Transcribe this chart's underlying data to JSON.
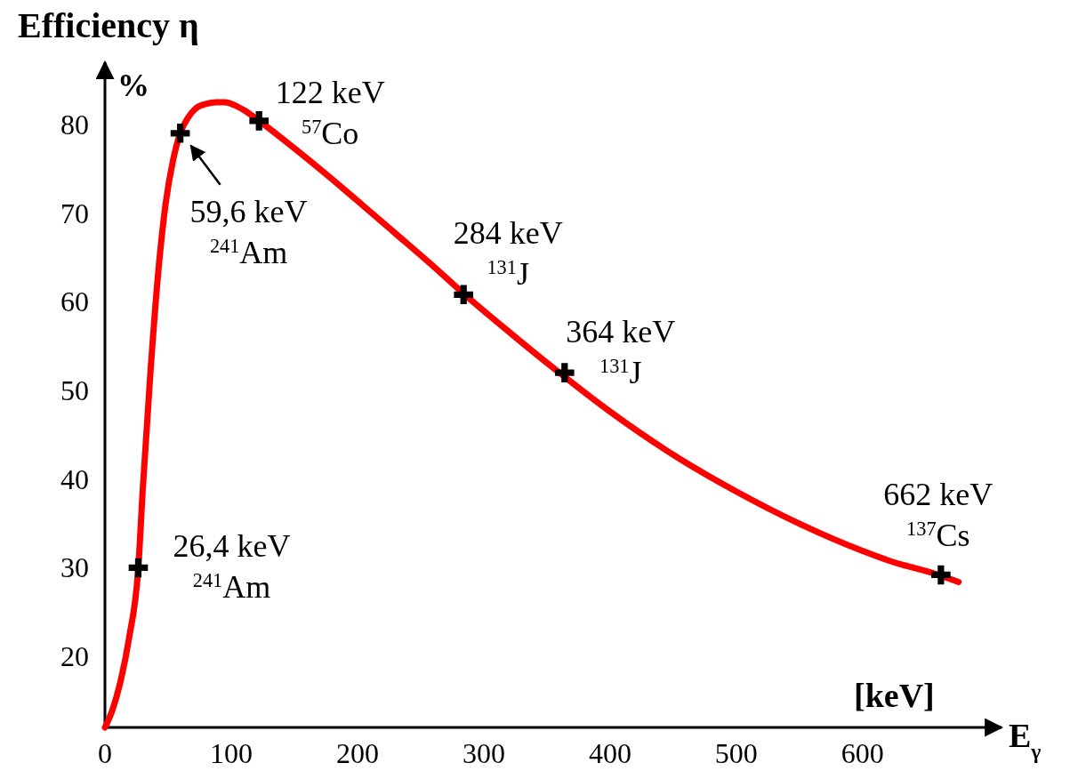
{
  "chart_data": {
    "type": "line",
    "title": "Efficiency η",
    "ylabel": "%",
    "xlabel": "E$_{γ}$",
    "xlim": [
      0,
      710
    ],
    "ylim": [
      12,
      87
    ],
    "xticks": [
      0,
      100,
      200,
      300,
      400,
      500,
      600
    ],
    "yticks": [
      20,
      30,
      40,
      50,
      60,
      70,
      80
    ],
    "grid": false,
    "series": [
      {
        "color": "#ff0000",
        "marker": "none",
        "x": [
          0,
          6,
          12,
          19,
          26.4,
          30,
          36,
          42,
          48,
          54,
          59.6,
          66,
          72,
          80,
          88,
          95,
          102,
          110,
          122,
          150,
          180,
          199,
          230,
          260,
          285,
          320,
          358,
          400,
          445,
          500,
          551,
          600,
          621,
          660,
          676
        ],
        "values": [
          12,
          14,
          17,
          22,
          30,
          39,
          52,
          63,
          71,
          76,
          79,
          80.8,
          81.8,
          82.3,
          82.5,
          82.5,
          82.2,
          81.6,
          80.4,
          77.3,
          73.8,
          71.5,
          67.7,
          64,
          60.8,
          56.6,
          52.2,
          47.6,
          43.2,
          38.6,
          34.9,
          31.9,
          30.8,
          29.2,
          28.4
        ]
      },
      {
        "type": "scatter",
        "color": "#000000",
        "marker": "cross",
        "x": [
          26.4,
          59.6,
          122,
          284,
          364,
          662
        ],
        "values": [
          30,
          79,
          80.4,
          60.8,
          52,
          29.2
        ]
      }
    ],
    "annotations": [
      {
        "text": "26,4 keV\n$^{241}$Am",
        "x": 26.4,
        "y": 30
      },
      {
        "text": "59,6 keV\n$^{241}$Am",
        "x": 59.6,
        "y": 79
      },
      {
        "text": "122 keV\n$^{57}$Co",
        "x": 122,
        "y": 80.4
      },
      {
        "text": "284 keV\n$^{131}$J",
        "x": 284,
        "y": 60.8
      },
      {
        "text": "364 keV\n$^{131}$J",
        "x": 364,
        "y": 52
      },
      {
        "text": "662 keV\n$^{137}$Cs",
        "x": 662,
        "y": 29.2
      },
      "[keV]"
    ]
  }
}
